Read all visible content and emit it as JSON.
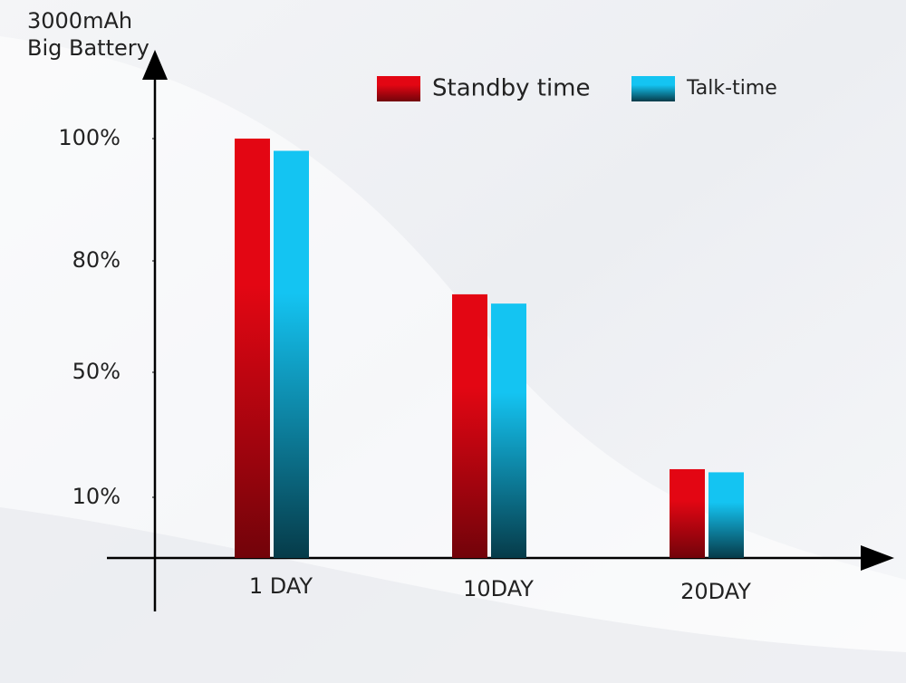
{
  "chart_data": {
    "type": "bar",
    "title": "3000mAh Big Battery",
    "categories": [
      "1 DAY",
      "10DAY",
      "20DAY"
    ],
    "series": [
      {
        "name": "Standby time",
        "color": "#e30613",
        "values": [
          100,
          71,
          19
        ]
      },
      {
        "name": "Talk-time",
        "color": "#14c4f2",
        "values": [
          98,
          68.5,
          18
        ]
      }
    ],
    "ylim": [
      0,
      100
    ],
    "yticks": [
      {
        "value": 10,
        "label": "10%"
      },
      {
        "value": 50,
        "label": "50%"
      },
      {
        "value": 80,
        "label": "80%"
      },
      {
        "value": 100,
        "label": "100%"
      }
    ],
    "grid": false,
    "legend": "top"
  }
}
